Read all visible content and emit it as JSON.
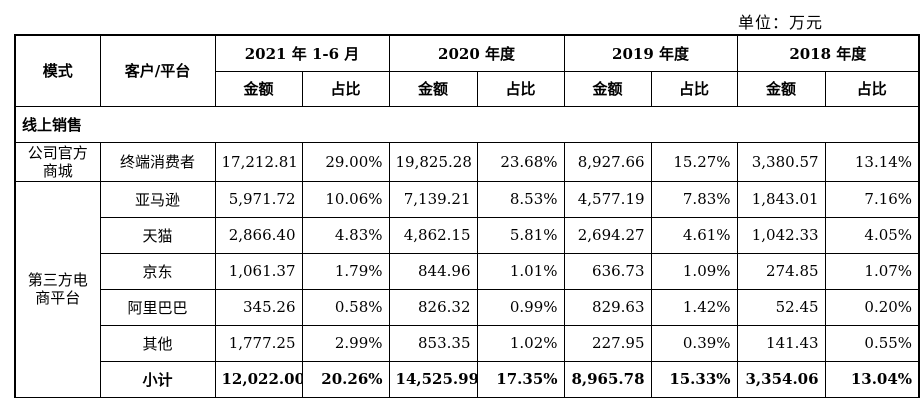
{
  "unit": "单位：万元",
  "header": {
    "mode": "模式",
    "customer": "客户/平台",
    "periods": [
      "2021 年 1-6 月",
      "2020 年度",
      "2019 年度",
      "2018 年度"
    ],
    "amount": "金额",
    "ratio": "占比"
  },
  "section_online": "线上销售",
  "groups": {
    "official": "公司官方商城",
    "third_party": "第三方电商平台"
  },
  "rows": [
    {
      "name": "终端消费者",
      "v": [
        "17,212.81",
        "29.00%",
        "19,825.28",
        "23.68%",
        "8,927.66",
        "15.27%",
        "3,380.57",
        "13.14%"
      ]
    },
    {
      "name": "亚马逊",
      "v": [
        "5,971.72",
        "10.06%",
        "7,139.21",
        "8.53%",
        "4,577.19",
        "7.83%",
        "1,843.01",
        "7.16%"
      ]
    },
    {
      "name": "天猫",
      "v": [
        "2,866.40",
        "4.83%",
        "4,862.15",
        "5.81%",
        "2,694.27",
        "4.61%",
        "1,042.33",
        "4.05%"
      ]
    },
    {
      "name": "京东",
      "v": [
        "1,061.37",
        "1.79%",
        "844.96",
        "1.01%",
        "636.73",
        "1.09%",
        "274.85",
        "1.07%"
      ]
    },
    {
      "name": "阿里巴巴",
      "v": [
        "345.26",
        "0.58%",
        "826.32",
        "0.99%",
        "829.63",
        "1.42%",
        "52.45",
        "0.20%"
      ]
    },
    {
      "name": "其他",
      "v": [
        "1,777.25",
        "2.99%",
        "853.35",
        "1.02%",
        "227.95",
        "0.39%",
        "141.43",
        "0.55%"
      ]
    },
    {
      "name": "小计",
      "v": [
        "12,022.00",
        "20.26%",
        "14,525.99",
        "17.35%",
        "8,965.78",
        "15.33%",
        "3,354.06",
        "13.04%"
      ]
    }
  ]
}
